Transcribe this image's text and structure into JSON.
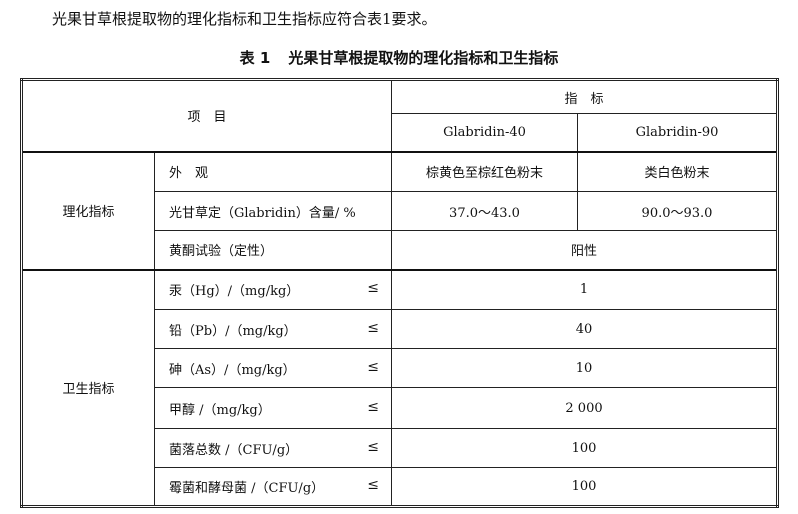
{
  "intro_text": "光果甘草根提取物的理化指标和卫生指标应符合表1要求。",
  "caption": {
    "number": "表 1",
    "title": "光果甘草根提取物的理化指标和卫生指标"
  },
  "header": {
    "item": "项　目",
    "indicator": "指　标",
    "col1": "Glabridin-40",
    "col2": "Glabridin-90"
  },
  "groups": {
    "physchem": "理化指标",
    "hygiene": "卫生指标"
  },
  "rows": [
    {
      "label": "外　观",
      "v1": "棕黄色至棕红色粉末",
      "v2": "类白色粉末"
    },
    {
      "label": "光甘草定（Glabridin）含量/ %",
      "v1": "37.0～43.0",
      "v2": "90.0～93.0"
    },
    {
      "label": "黄酮试验（定性）",
      "v": "阳性"
    },
    {
      "label": "汞（Hg）/（mg/kg）",
      "le": "≤",
      "v": "1"
    },
    {
      "label": "铅（Pb）/（mg/kg）",
      "le": "≤",
      "v": "40"
    },
    {
      "label": "砷（As）/（mg/kg）",
      "le": "≤",
      "v": "10"
    },
    {
      "label": "甲醇 /（mg/kg）",
      "le": "≤",
      "v": "2 000"
    },
    {
      "label": "菌落总数 /（CFU/g）",
      "le": "≤",
      "v": "100"
    },
    {
      "label": "霉菌和酵母菌 /（CFU/g）",
      "le": "≤",
      "v": "100"
    }
  ]
}
